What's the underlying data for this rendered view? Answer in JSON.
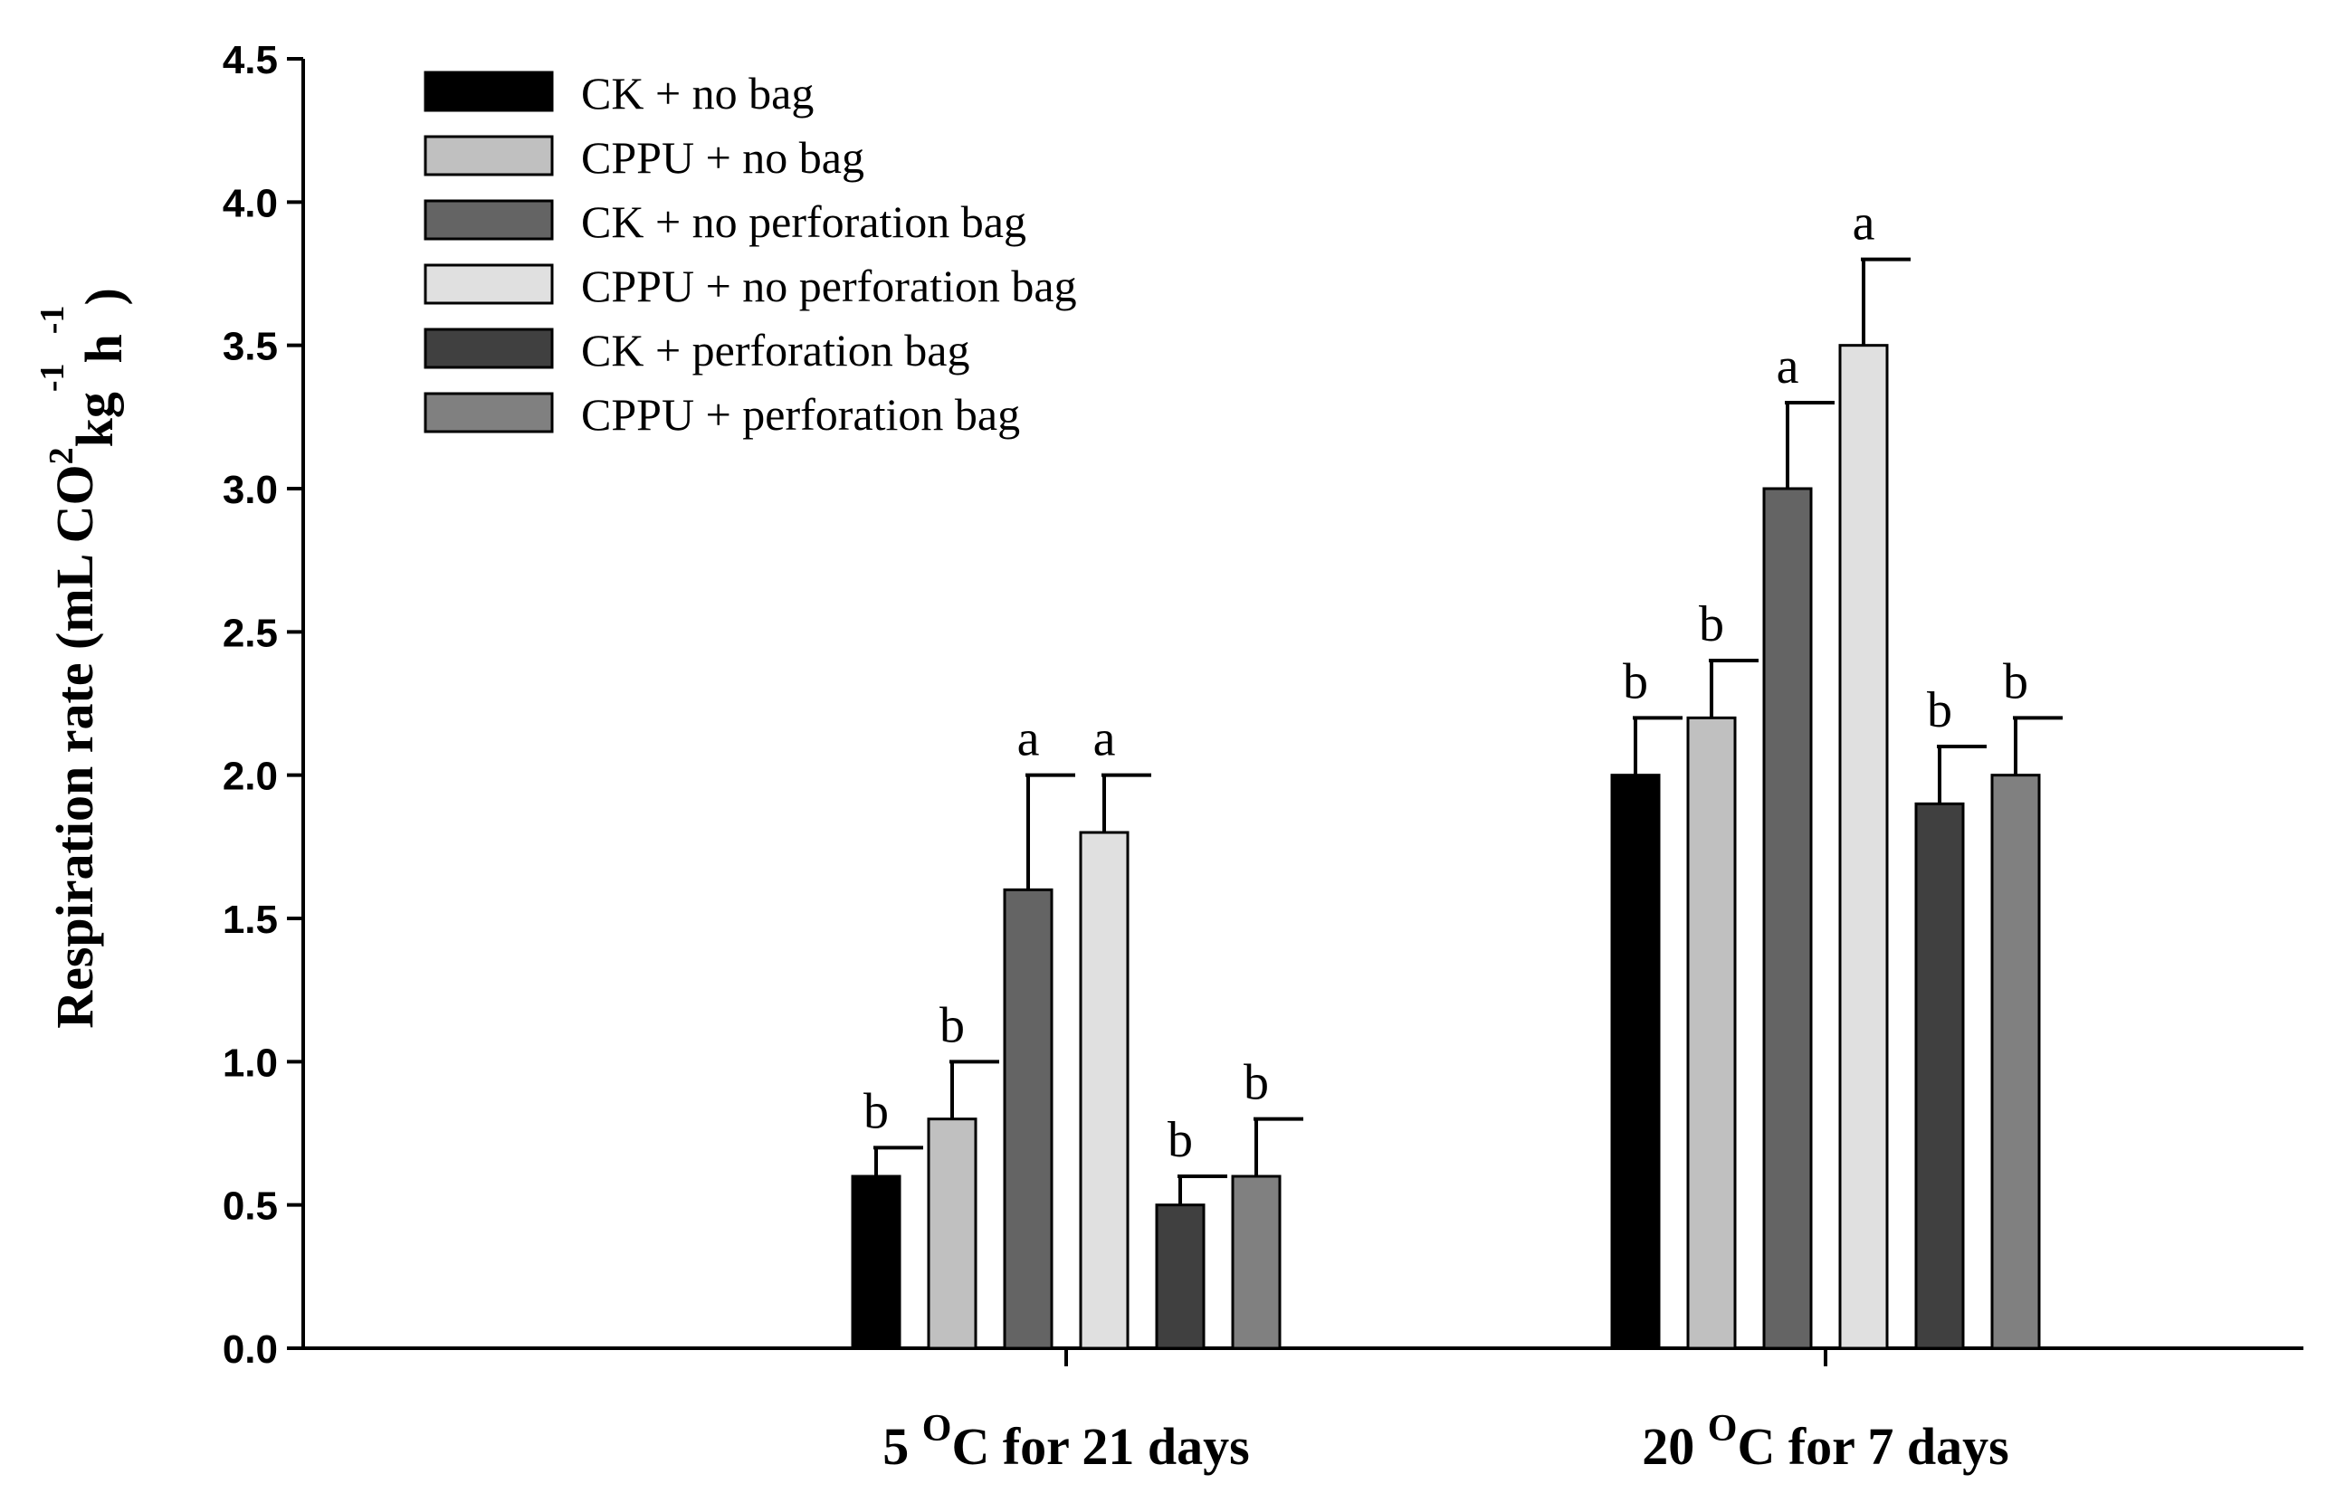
{
  "chart_data": {
    "type": "bar",
    "title": "",
    "xlabel": "",
    "ylabel_parts": [
      "Respiration rate (mL CO",
      "2",
      "kg",
      "-1",
      "h",
      "-1",
      ")"
    ],
    "ylim": [
      0,
      4.5
    ],
    "yticks": [
      "0.0",
      "0.5",
      "1.0",
      "1.5",
      "2.0",
      "2.5",
      "3.0",
      "3.5",
      "4.0",
      "4.5"
    ],
    "categories": [
      {
        "pre": "5 ",
        "sup": "O",
        "post": "C for 21 days"
      },
      {
        "pre": "20 ",
        "sup": "O",
        "post": "C for 7 days"
      }
    ],
    "legend_position": "top-left",
    "series": [
      {
        "name": "CK + no bag",
        "color": "#000000",
        "values": [
          0.6,
          2.0
        ],
        "errors": [
          0.1,
          0.2
        ],
        "letters": [
          "b",
          "b"
        ]
      },
      {
        "name": "CPPU + no bag",
        "color": "#c0c0c0",
        "values": [
          0.8,
          2.2
        ],
        "errors": [
          0.2,
          0.2
        ],
        "letters": [
          "b",
          "b"
        ]
      },
      {
        "name": "CK + no perforation bag",
        "color": "#646464",
        "values": [
          1.6,
          3.0
        ],
        "errors": [
          0.4,
          0.3
        ],
        "letters": [
          "a",
          "a"
        ]
      },
      {
        "name": "CPPU +  no perforation bag",
        "color": "#e0e0e0",
        "values": [
          1.8,
          3.5
        ],
        "errors": [
          0.2,
          0.3
        ],
        "letters": [
          "a",
          "a"
        ]
      },
      {
        "name": "CK +  perforation bag",
        "color": "#404040",
        "values": [
          0.5,
          1.9
        ],
        "errors": [
          0.1,
          0.2
        ],
        "letters": [
          "b",
          "b"
        ]
      },
      {
        "name": "CPPU + perforation bag",
        "color": "#808080",
        "values": [
          0.6,
          2.0
        ],
        "errors": [
          0.2,
          0.2
        ],
        "letters": [
          "b",
          "b"
        ]
      }
    ]
  }
}
